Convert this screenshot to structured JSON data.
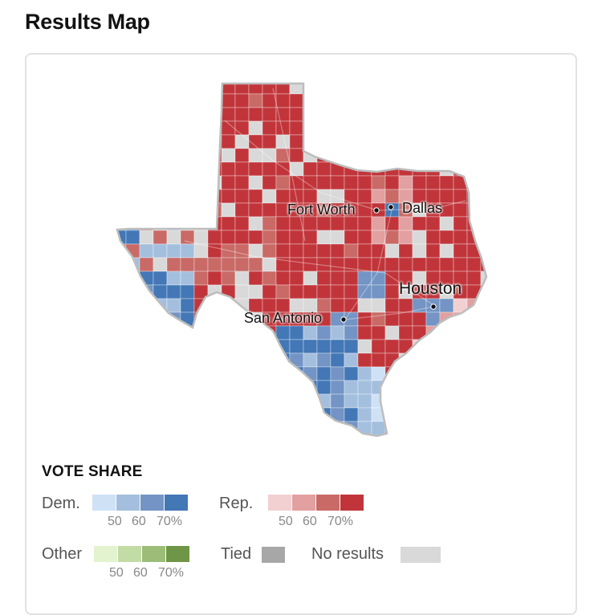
{
  "header": {
    "title": "Results Map"
  },
  "map": {
    "cities": [
      {
        "name": "Fort Worth"
      },
      {
        "name": "Dallas"
      },
      {
        "name": "Houston"
      },
      {
        "name": "San Antonio"
      }
    ],
    "colors": {
      "rep": [
        "#f2cfd1",
        "#e2a0a0",
        "#c96a66",
        "#c1353a"
      ],
      "dem": [
        "#cfe1f5",
        "#a4bfde",
        "#7394c4",
        "#4377b6"
      ],
      "other": [
        "#e3f2cf",
        "#c3dca6",
        "#9cbd78",
        "#6f9646"
      ],
      "tied": "#a7a7a7",
      "no_results": "#d9d9d9",
      "outline": "#b9b9b9"
    }
  },
  "legend": {
    "title": "VOTE SHARE",
    "dem_label": "Dem.",
    "rep_label": "Rep.",
    "other_label": "Other",
    "tied_label": "Tied",
    "no_results_label": "No results",
    "ticks": [
      "50",
      "60",
      "70%"
    ]
  }
}
